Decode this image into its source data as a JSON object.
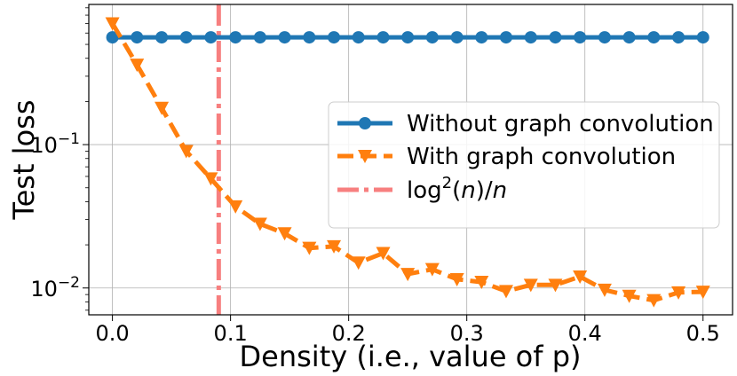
{
  "chart_data": {
    "type": "line",
    "xlabel": "Density (i.e., value of p)",
    "ylabel": "Test loss",
    "yscale": "log",
    "xlim": [
      -0.02,
      0.525
    ],
    "ylim": [
      0.0065,
      0.95
    ],
    "grid": true,
    "x_ticks": [
      {
        "value": 0.0,
        "label": "0.0"
      },
      {
        "value": 0.1,
        "label": "0.1"
      },
      {
        "value": 0.2,
        "label": "0.2"
      },
      {
        "value": 0.3,
        "label": "0.3"
      },
      {
        "value": 0.4,
        "label": "0.4"
      },
      {
        "value": 0.5,
        "label": "0.5"
      }
    ],
    "y_ticks": [
      {
        "value": 0.01,
        "base": "10",
        "exp": "−2"
      },
      {
        "value": 0.1,
        "base": "10",
        "exp": "−1"
      }
    ],
    "x": [
      0.0,
      0.0208,
      0.0417,
      0.0625,
      0.0833,
      0.1042,
      0.125,
      0.1458,
      0.1667,
      0.1875,
      0.2083,
      0.2292,
      0.25,
      0.2708,
      0.2917,
      0.3125,
      0.3333,
      0.3542,
      0.375,
      0.3958,
      0.4167,
      0.4375,
      0.4583,
      0.4792,
      0.5
    ],
    "series": [
      {
        "name": "Without graph convolution",
        "color": "#1f77b4",
        "marker": "circle",
        "linestyle": "solid",
        "values": [
          0.56,
          0.56,
          0.56,
          0.56,
          0.56,
          0.56,
          0.56,
          0.56,
          0.56,
          0.56,
          0.56,
          0.56,
          0.56,
          0.56,
          0.56,
          0.56,
          0.56,
          0.56,
          0.56,
          0.56,
          0.56,
          0.56,
          0.56,
          0.56,
          0.56
        ]
      },
      {
        "name": "With graph convolution",
        "color": "#ff7f0e",
        "marker": "triangle-down",
        "linestyle": "dashed",
        "values": [
          0.7,
          0.36,
          0.18,
          0.09,
          0.058,
          0.037,
          0.028,
          0.024,
          0.019,
          0.0195,
          0.015,
          0.0175,
          0.0125,
          0.0135,
          0.0115,
          0.011,
          0.0095,
          0.0105,
          0.0105,
          0.012,
          0.0097,
          0.0088,
          0.0082,
          0.0093,
          0.0094
        ]
      }
    ],
    "vline": {
      "name": "log",
      "label_parts": [
        "log",
        "2",
        "(",
        "n",
        ")/",
        "n"
      ],
      "x": 0.09,
      "color": "#f77f7f",
      "linestyle": "dashdot"
    },
    "legend": {
      "placement": "center-right"
    }
  }
}
